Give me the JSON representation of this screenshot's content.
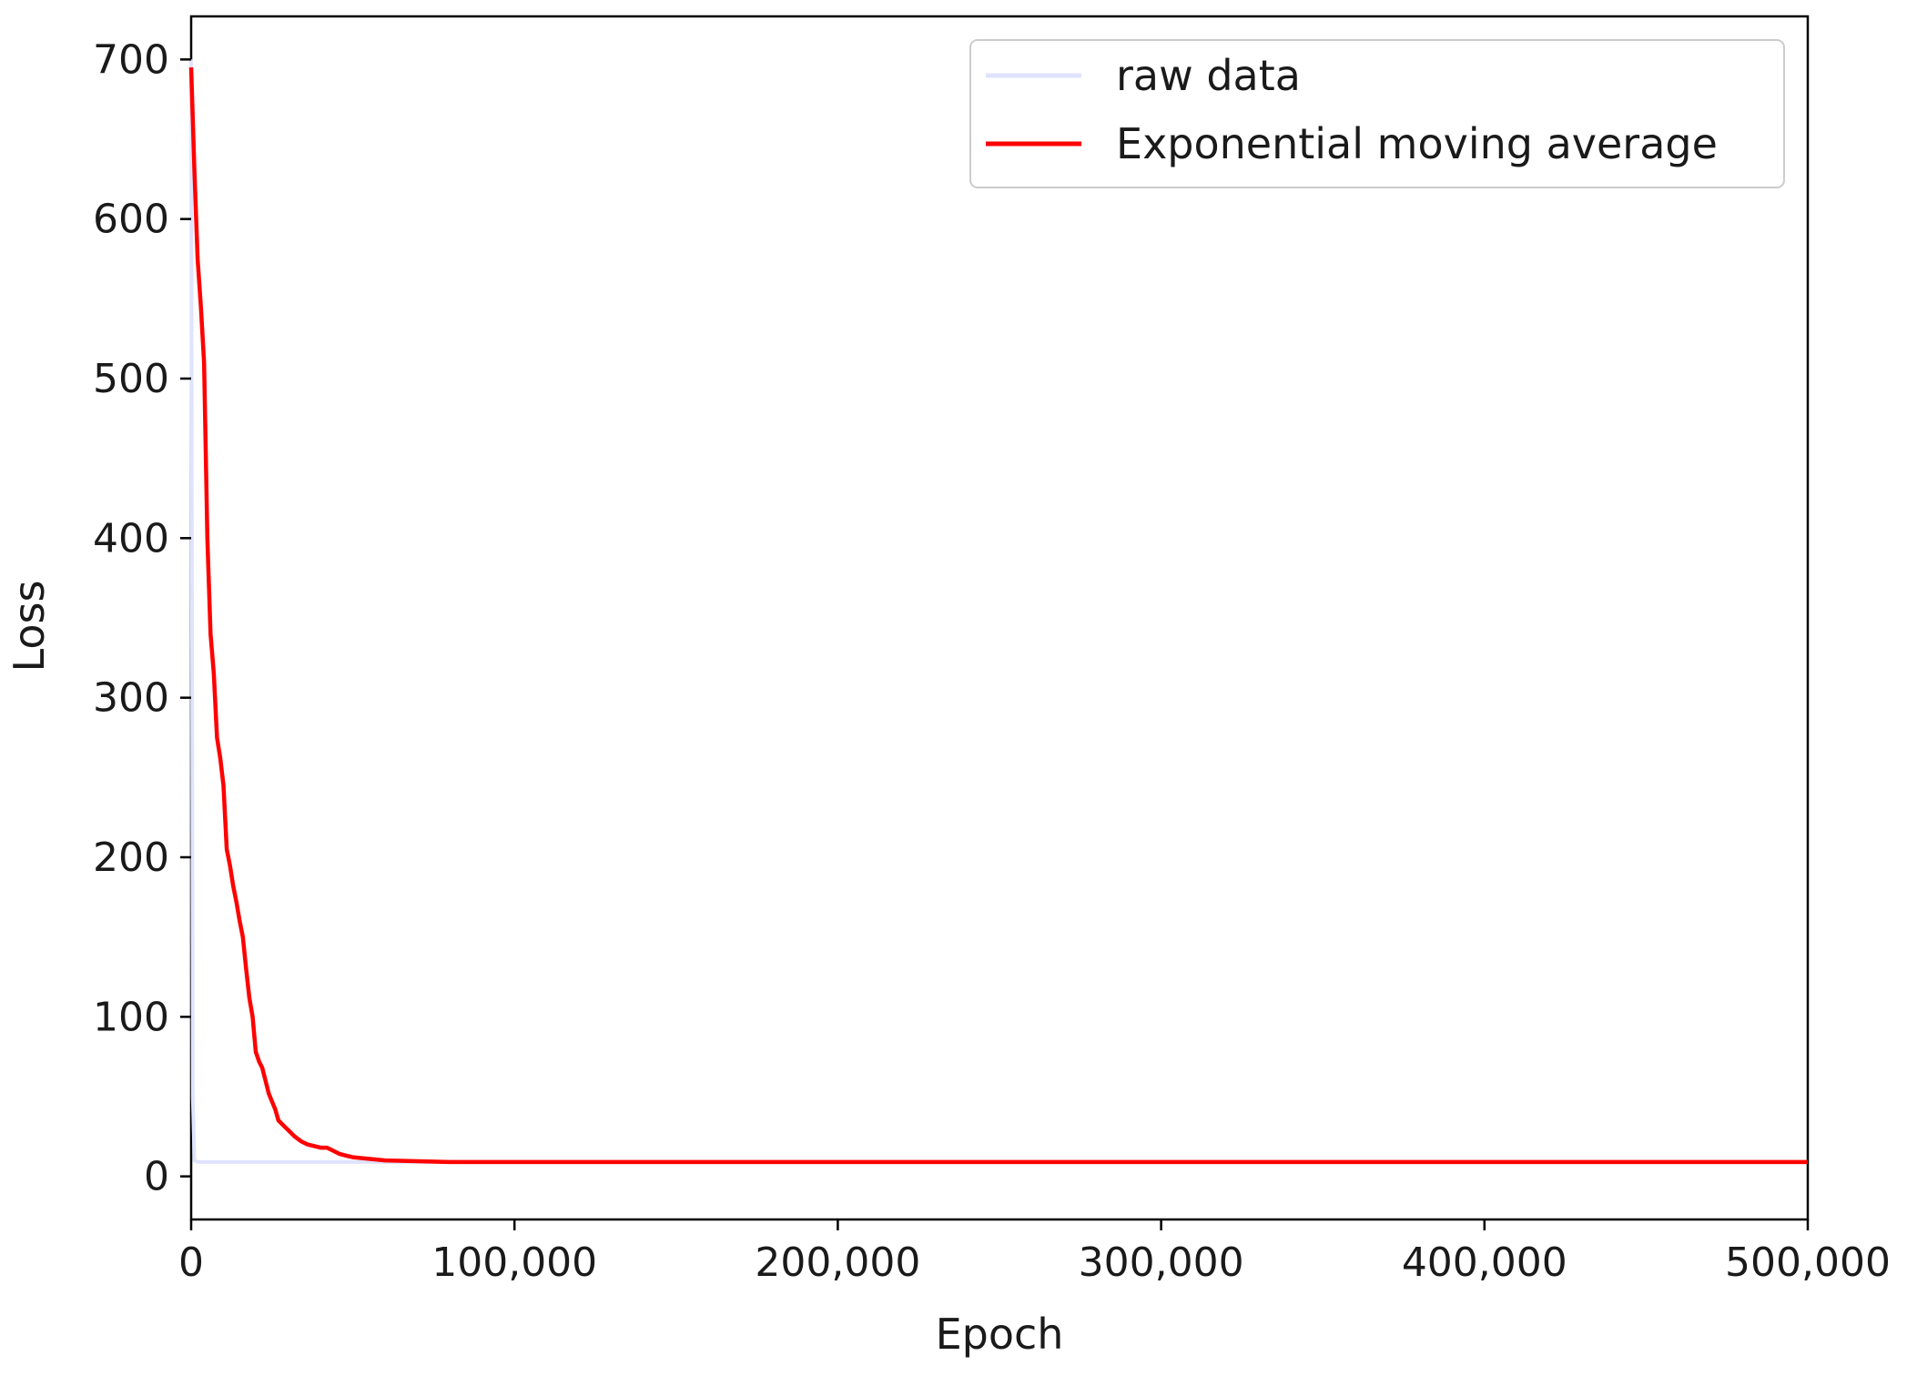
{
  "chart_data": {
    "type": "line",
    "xlabel": "Epoch",
    "ylabel": "Loss",
    "xlim": [
      0,
      500000
    ],
    "ylim": [
      -27,
      727
    ],
    "x_ticks": [
      0,
      100000,
      200000,
      300000,
      400000,
      500000
    ],
    "x_tick_labels": [
      "0",
      "100,000",
      "200,000",
      "300,000",
      "400,000",
      "500,000"
    ],
    "y_ticks": [
      0,
      100,
      200,
      300,
      400,
      500,
      600,
      700
    ],
    "y_tick_labels": [
      "0",
      "100",
      "200",
      "300",
      "400",
      "500",
      "600",
      "700"
    ],
    "grid": false,
    "legend_position": "top-right",
    "series": [
      {
        "name": "raw data",
        "color": "#dfe3ff",
        "x": [
          0,
          500,
          1000,
          2000,
          5000,
          10000,
          50000,
          100000,
          200000,
          300000,
          400000,
          500000
        ],
        "y": [
          700,
          50,
          10,
          9,
          9,
          9,
          9,
          9,
          9,
          9,
          9,
          9
        ]
      },
      {
        "name": "Exponential moving average",
        "color": "#ff0000",
        "x": [
          0,
          1000,
          2000,
          3000,
          4000,
          5000,
          6000,
          7000,
          8000,
          9000,
          10000,
          11000,
          12000,
          13000,
          14000,
          15000,
          16000,
          17000,
          18000,
          19000,
          20000,
          21000,
          22000,
          23000,
          24000,
          25000,
          26000,
          27000,
          28000,
          29000,
          30000,
          32000,
          34000,
          36000,
          38000,
          40000,
          42000,
          44000,
          46000,
          48000,
          50000,
          55000,
          60000,
          70000,
          80000,
          90000,
          100000,
          150000,
          200000,
          250000,
          300000,
          350000,
          400000,
          450000,
          500000
        ],
        "y": [
          695,
          630,
          575,
          545,
          510,
          400,
          340,
          315,
          275,
          262,
          245,
          205,
          195,
          182,
          172,
          160,
          150,
          130,
          112,
          100,
          78,
          72,
          68,
          60,
          52,
          47,
          42,
          35,
          33,
          31,
          29,
          25,
          22,
          20,
          19,
          18,
          18,
          16,
          14,
          13,
          12,
          11,
          10,
          9.5,
          9,
          9,
          9,
          9,
          9,
          9,
          9,
          9,
          9,
          9,
          9
        ]
      }
    ]
  }
}
